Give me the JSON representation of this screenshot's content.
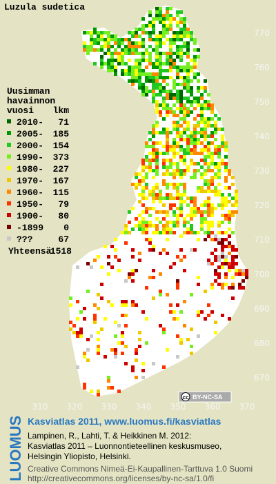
{
  "map": {
    "title": "Luzula sudetica",
    "legend": {
      "heading": [
        "Uusimman",
        "havainnon",
        "vuosi"
      ],
      "count_heading": "lkm",
      "rows": [
        {
          "label": "2010-",
          "count": 71,
          "color": "#006600"
        },
        {
          "label": "2005-",
          "count": 185,
          "color": "#009a00"
        },
        {
          "label": "2000-",
          "count": 154,
          "color": "#22c822"
        },
        {
          "label": "1990-",
          "count": 373,
          "color": "#77ee22"
        },
        {
          "label": "1980-",
          "count": 227,
          "color": "#ffff00"
        },
        {
          "label": "1970-",
          "count": 167,
          "color": "#f0c800"
        },
        {
          "label": "1960-",
          "count": 115,
          "color": "#ff8800"
        },
        {
          "label": "1950-",
          "count": 79,
          "color": "#ff3300"
        },
        {
          "label": "1900-",
          "count": 80,
          "color": "#cc0000"
        },
        {
          "label": "-1899",
          "count": 0,
          "color": "#7a0000"
        },
        {
          "label": "???",
          "count": 67,
          "color": "#c8c8c8"
        }
      ],
      "total_label": "Yhteensä",
      "total": 1518
    },
    "xticks": [
      310,
      320,
      330,
      340,
      350,
      360,
      370
    ],
    "yticks": [
      770,
      760,
      750,
      740,
      730,
      720,
      710,
      700,
      690,
      680,
      670
    ],
    "license_badge": {
      "icon": "cc",
      "label": "BY-NC-SA"
    }
  },
  "footer": {
    "logo": "LUOMUS",
    "headline": "Kasviatlas 2011, www.luomus.fi/kasviatlas",
    "citation": [
      "Lampinen, R., Lahti, T. & Heikkinen M. 2012:",
      "Kasviatlas 2011 – Luonnontieteellinen keskusmuseo,",
      "Helsingin Yliopisto, Helsinki."
    ],
    "license": [
      "Creative Commons Nimeä-Ei-Kaupallinen-Tarttuva 1.0 Suomi",
      "http://creativecommons.org/licenses/by-nc-sa/1.0/fi"
    ]
  }
}
